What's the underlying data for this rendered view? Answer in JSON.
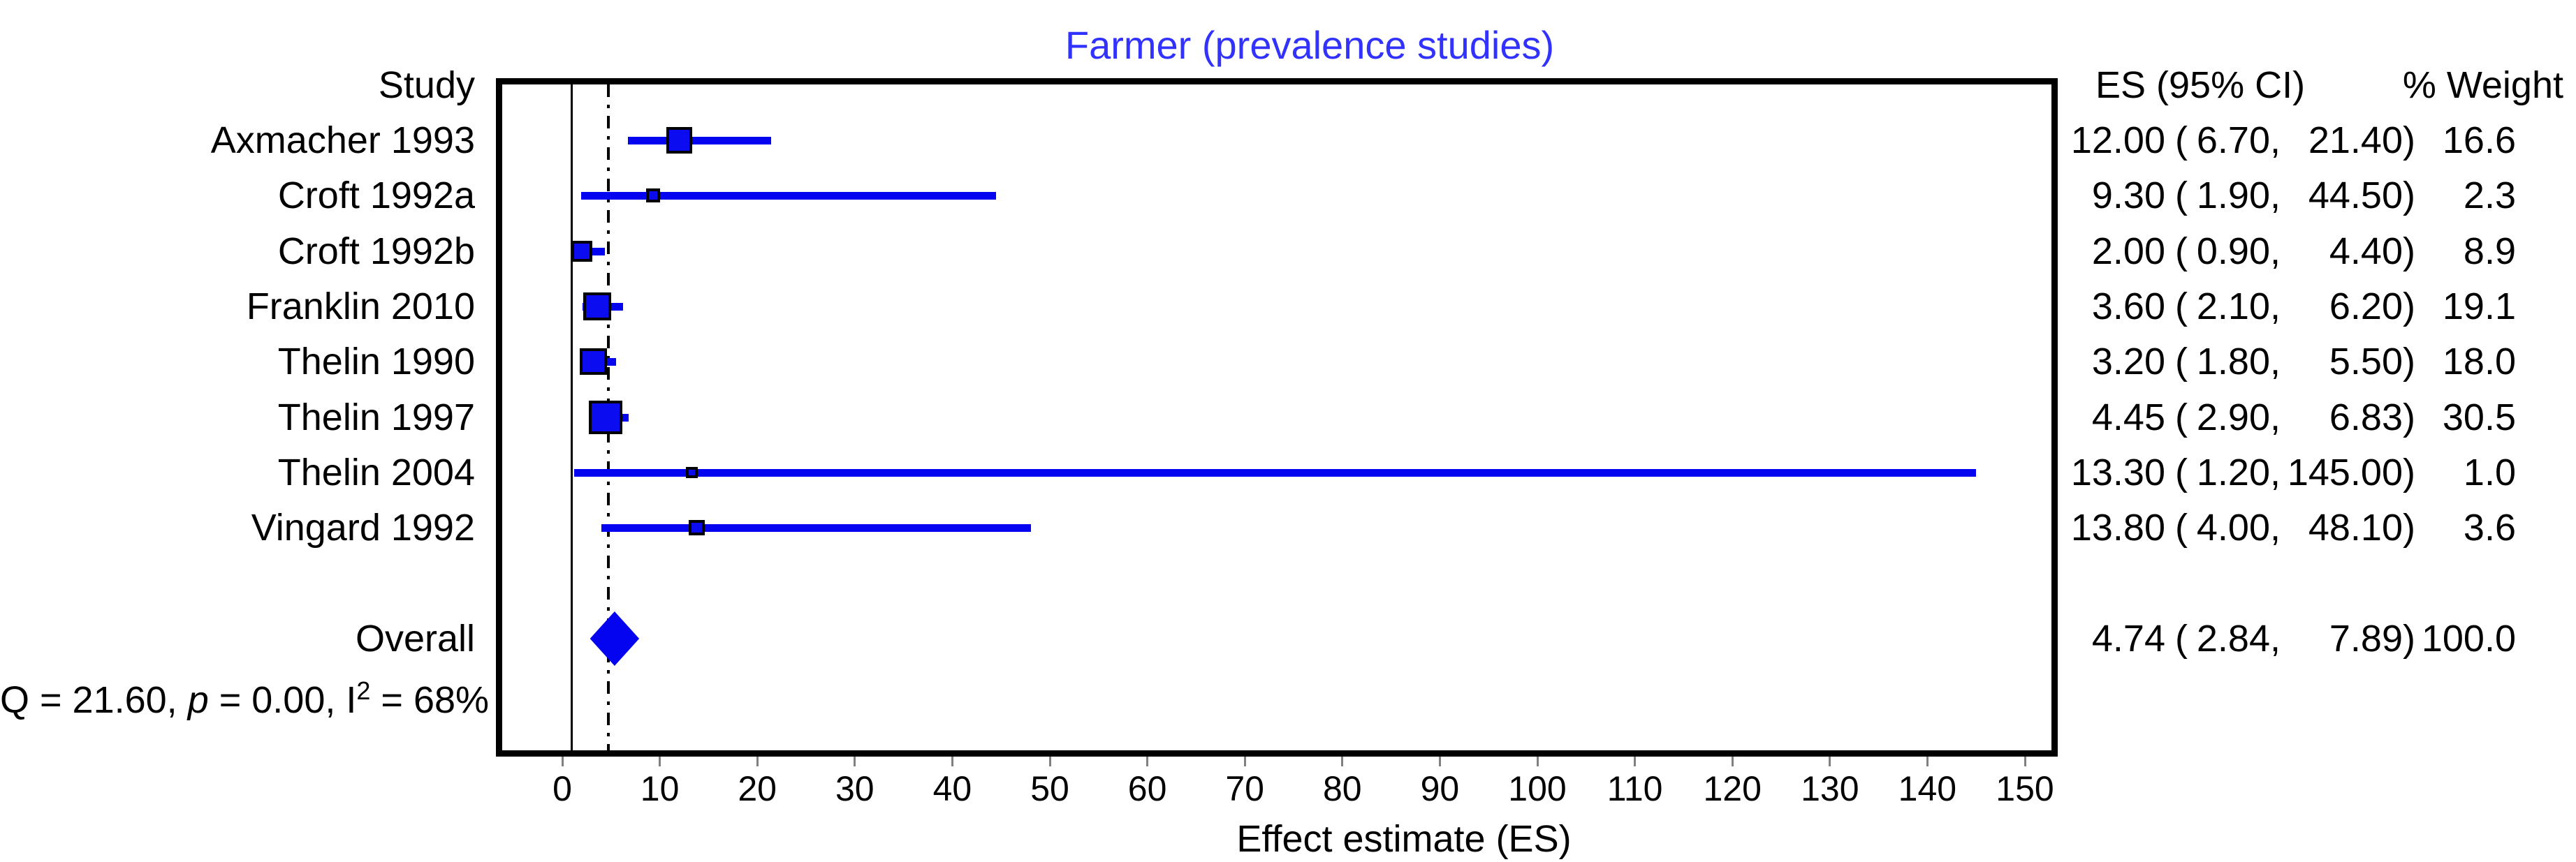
{
  "title": "Farmer (prevalence studies)",
  "columns": {
    "study": "Study",
    "es_ci": "ES (95% CI)",
    "weight": "% Weight"
  },
  "studies": [
    {
      "label": "Axmacher 1993",
      "es": "12.00",
      "lo": "6.70",
      "hi": "21.40",
      "weight": "16.6"
    },
    {
      "label": "Croft 1992a",
      "es": "9.30",
      "lo": "1.90",
      "hi": "44.50",
      "weight": "2.3"
    },
    {
      "label": "Croft 1992b",
      "es": "2.00",
      "lo": "0.90",
      "hi": "4.40",
      "weight": "8.9"
    },
    {
      "label": "Franklin 2010",
      "es": "3.60",
      "lo": "2.10",
      "hi": "6.20",
      "weight": "19.1"
    },
    {
      "label": "Thelin 1990",
      "es": "3.20",
      "lo": "1.80",
      "hi": "5.50",
      "weight": "18.0"
    },
    {
      "label": "Thelin 1997",
      "es": "4.45",
      "lo": "2.90",
      "hi": "6.83",
      "weight": "30.5"
    },
    {
      "label": "Thelin 2004",
      "es": "13.30",
      "lo": "1.20",
      "hi": "145.00",
      "weight": "1.0"
    },
    {
      "label": "Vingard 1992",
      "es": "13.80",
      "lo": "4.00",
      "hi": "48.10",
      "weight": "3.6"
    }
  ],
  "overall": {
    "label": "Overall",
    "es": "4.74",
    "lo": "2.84",
    "hi": "7.89",
    "weight": "100.0"
  },
  "heterogeneity": {
    "prefix": "Q = 21.60, ",
    "p_symbol": "p",
    "mid": " = 0.00, I",
    "sup": "2",
    "suffix": " = 68%"
  },
  "x_axis": {
    "label": "Effect estimate (ES)",
    "ticks": [
      "0",
      "10",
      "20",
      "30",
      "40",
      "50",
      "60",
      "70",
      "80",
      "90",
      "100",
      "110",
      "120",
      "130",
      "140",
      "150"
    ]
  },
  "chart_data": {
    "type": "forest",
    "title": "Farmer (prevalence studies)",
    "xlabel": "Effect estimate (ES)",
    "x_ticks": [
      0,
      10,
      20,
      30,
      40,
      50,
      60,
      70,
      80,
      90,
      100,
      110,
      120,
      130,
      140,
      150
    ],
    "x_range": [
      -6.8,
      153.4
    ],
    "reference_line_x": 1,
    "pooled_line_x": 4.74,
    "grid": false,
    "studies": [
      {
        "name": "Axmacher 1993",
        "es": 12.0,
        "ci_low": 6.7,
        "ci_high": 21.4,
        "weight_pct": 16.6
      },
      {
        "name": "Croft 1992a",
        "es": 9.3,
        "ci_low": 1.9,
        "ci_high": 44.5,
        "weight_pct": 2.3
      },
      {
        "name": "Croft 1992b",
        "es": 2.0,
        "ci_low": 0.9,
        "ci_high": 4.4,
        "weight_pct": 8.9
      },
      {
        "name": "Franklin 2010",
        "es": 3.6,
        "ci_low": 2.1,
        "ci_high": 6.2,
        "weight_pct": 19.1
      },
      {
        "name": "Thelin 1990",
        "es": 3.2,
        "ci_low": 1.8,
        "ci_high": 5.5,
        "weight_pct": 18.0
      },
      {
        "name": "Thelin 1997",
        "es": 4.45,
        "ci_low": 2.9,
        "ci_high": 6.83,
        "weight_pct": 30.5
      },
      {
        "name": "Thelin 2004",
        "es": 13.3,
        "ci_low": 1.2,
        "ci_high": 145.0,
        "weight_pct": 1.0
      },
      {
        "name": "Vingard 1992",
        "es": 13.8,
        "ci_low": 4.0,
        "ci_high": 48.1,
        "weight_pct": 3.6
      }
    ],
    "overall": {
      "name": "Overall",
      "es": 4.74,
      "ci_low": 2.84,
      "ci_high": 7.89,
      "weight_pct": 100.0
    },
    "heterogeneity": {
      "Q": 21.6,
      "p": 0.0,
      "I2_pct": 68
    },
    "colors": {
      "marker_blue": "#0404f0",
      "title_blue": "#3232ff",
      "text": "#000000",
      "tick_gray": "#808080"
    }
  }
}
